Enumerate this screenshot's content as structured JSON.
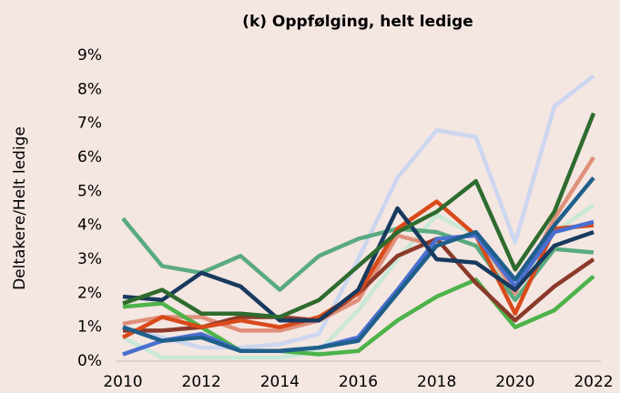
{
  "chart_data": {
    "type": "line",
    "title": "(k) Oppfølging, helt ledige",
    "y_label": "Deltakere/Helt ledige",
    "x": [
      2010,
      2011,
      2012,
      2013,
      2014,
      2015,
      2016,
      2017,
      2018,
      2019,
      2020,
      2021,
      2022
    ],
    "xlim": [
      2010,
      2022
    ],
    "xticks": [
      2010,
      2012,
      2014,
      2016,
      2018,
      2020,
      2022
    ],
    "ylim": [
      0,
      9
    ],
    "yticks": [
      {
        "value": 0,
        "label": "0%"
      },
      {
        "value": 1,
        "label": "1%"
      },
      {
        "value": 2,
        "label": "2%"
      },
      {
        "value": 3,
        "label": "3%"
      },
      {
        "value": 4,
        "label": "4%"
      },
      {
        "value": 5,
        "label": "5%"
      },
      {
        "value": 6,
        "label": "6%"
      },
      {
        "value": 7,
        "label": "7%"
      },
      {
        "value": 8,
        "label": "8%"
      },
      {
        "value": 9,
        "label": "9%"
      }
    ],
    "grid": false,
    "series": [
      {
        "color": "#ccd6f0",
        "values": [
          1.0,
          0.7,
          0.4,
          0.4,
          0.5,
          0.8,
          3.0,
          5.4,
          6.8,
          6.6,
          3.5,
          7.5,
          8.4
        ]
      },
      {
        "color": "#c9e8d6",
        "values": [
          0.7,
          0.1,
          0.1,
          0.1,
          0.1,
          0.3,
          1.5,
          3.0,
          4.3,
          3.7,
          2.0,
          3.8,
          4.6
        ]
      },
      {
        "color": "#e0907a",
        "values": [
          1.1,
          1.3,
          1.3,
          0.9,
          0.9,
          1.2,
          1.8,
          3.7,
          3.4,
          3.8,
          2.0,
          4.2,
          6.0
        ]
      },
      {
        "color": "#5aaa80",
        "values": [
          4.2,
          2.8,
          2.6,
          3.1,
          2.1,
          3.1,
          3.6,
          3.9,
          3.8,
          3.4,
          1.8,
          3.3,
          3.2
        ]
      },
      {
        "color": "#4db34a",
        "values": [
          1.6,
          1.7,
          1.0,
          0.3,
          0.3,
          0.2,
          0.3,
          1.2,
          1.9,
          2.4,
          1.0,
          1.5,
          2.5
        ]
      },
      {
        "color": "#8b3a2a",
        "values": [
          0.9,
          0.9,
          1.0,
          1.3,
          1.3,
          1.2,
          2.0,
          3.1,
          3.6,
          2.3,
          1.2,
          2.2,
          3.0
        ]
      },
      {
        "color": "#d94a1a",
        "values": [
          0.7,
          1.3,
          1.0,
          1.2,
          1.0,
          1.3,
          2.0,
          3.9,
          4.7,
          3.7,
          1.4,
          3.9,
          4.0
        ]
      },
      {
        "color": "#4a6fd0",
        "values": [
          0.2,
          0.6,
          0.8,
          0.3,
          0.3,
          0.4,
          0.7,
          2.1,
          3.6,
          3.7,
          2.2,
          3.8,
          4.1
        ]
      },
      {
        "color": "#1f5f8b",
        "values": [
          1.0,
          0.6,
          0.7,
          0.3,
          0.3,
          0.4,
          0.6,
          2.0,
          3.4,
          3.8,
          2.4,
          4.0,
          5.4
        ]
      },
      {
        "color": "#183a5e",
        "values": [
          1.9,
          1.8,
          2.6,
          2.2,
          1.2,
          1.2,
          2.1,
          4.5,
          3.0,
          2.9,
          2.1,
          3.4,
          3.8
        ]
      },
      {
        "color": "#2e6b2e",
        "values": [
          1.7,
          2.1,
          1.4,
          1.4,
          1.3,
          1.8,
          2.8,
          3.8,
          4.4,
          5.3,
          2.7,
          4.4,
          7.3
        ]
      }
    ]
  }
}
